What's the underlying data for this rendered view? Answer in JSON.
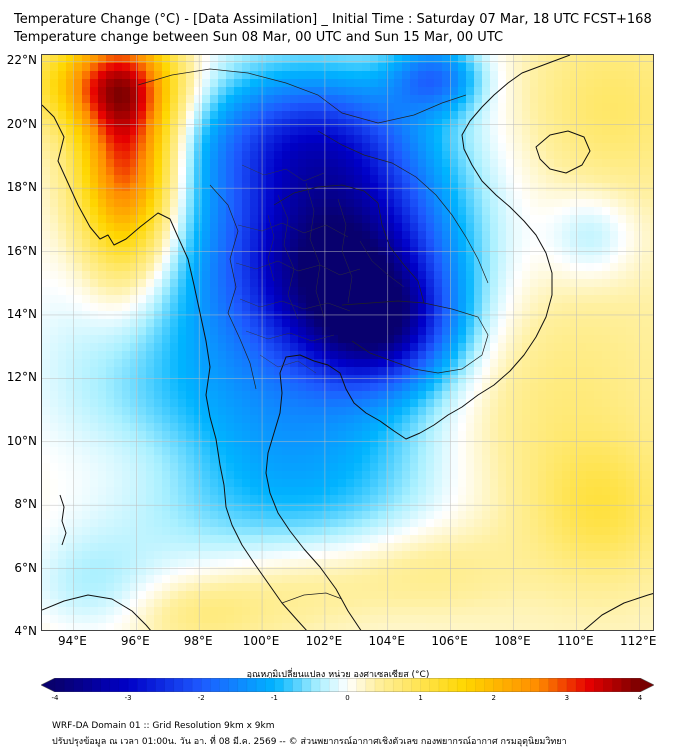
{
  "header": {
    "title_line1": "Temperature Change (°C) - [Data Assimilation] _ Initial Time : Saturday 07 Mar, 18 UTC FCST+168",
    "title_line2": "Temperature change between Sun 08 Mar, 00 UTC and Sun 15 Mar, 00 UTC"
  },
  "map": {
    "lon_range": [
      93,
      112.5
    ],
    "lat_range": [
      4,
      22.2
    ],
    "lat_ticks": [
      {
        "value": 22,
        "label": "22°N"
      },
      {
        "value": 20,
        "label": "20°N"
      },
      {
        "value": 18,
        "label": "18°N"
      },
      {
        "value": 16,
        "label": "16°N"
      },
      {
        "value": 14,
        "label": "14°N"
      },
      {
        "value": 12,
        "label": "12°N"
      },
      {
        "value": 10,
        "label": "10°N"
      },
      {
        "value": 8,
        "label": "8°N"
      },
      {
        "value": 6,
        "label": "6°N"
      },
      {
        "value": 4,
        "label": "4°N"
      }
    ],
    "lon_ticks": [
      {
        "value": 94,
        "label": "94°E"
      },
      {
        "value": 96,
        "label": "96°E"
      },
      {
        "value": 98,
        "label": "98°E"
      },
      {
        "value": 100,
        "label": "100°E"
      },
      {
        "value": 102,
        "label": "102°E"
      },
      {
        "value": 104,
        "label": "104°E"
      },
      {
        "value": 106,
        "label": "106°E"
      },
      {
        "value": 108,
        "label": "108°E"
      },
      {
        "value": 110,
        "label": "110°E"
      },
      {
        "value": 112,
        "label": "112°E"
      }
    ],
    "field_features": [
      {
        "name": "warm-core-myanmar",
        "lon": 95.7,
        "lat": 19.0,
        "value": 3.2,
        "spread_lon": 1.1,
        "spread_lat": 2.6
      },
      {
        "name": "warm-north-myanmar",
        "lon": 95.0,
        "lat": 21.3,
        "value": 1.8,
        "spread_lon": 1.6,
        "spread_lat": 1.0
      },
      {
        "name": "cold-core-thailand-laos",
        "lon": 102.5,
        "lat": 15.8,
        "value": -3.0,
        "spread_lon": 2.3,
        "spread_lat": 2.0
      },
      {
        "name": "cold-cambodia",
        "lon": 103.8,
        "lat": 13.6,
        "value": -2.2,
        "spread_lon": 1.6,
        "spread_lat": 1.3
      },
      {
        "name": "cold-north-laos",
        "lon": 101.5,
        "lat": 19.5,
        "value": -1.9,
        "spread_lon": 2.4,
        "spread_lat": 1.5
      },
      {
        "name": "cold-central-broad",
        "lon": 101.5,
        "lat": 14.8,
        "value": -1.4,
        "spread_lon": 4.0,
        "spread_lat": 5.0
      },
      {
        "name": "cold-south-china",
        "lon": 105.5,
        "lat": 21.5,
        "value": -1.6,
        "spread_lon": 1.0,
        "spread_lat": 0.8
      },
      {
        "name": "cool-gulf-thailand",
        "lon": 101.0,
        "lat": 8.8,
        "value": -0.7,
        "spread_lon": 3.5,
        "spread_lat": 2.5
      },
      {
        "name": "cool-andaman",
        "lon": 96.0,
        "lat": 12.0,
        "value": -0.4,
        "spread_lon": 3.0,
        "spread_lat": 3.0
      },
      {
        "name": "cool-south-china-sea",
        "lon": 110.5,
        "lat": 16.5,
        "value": -0.6,
        "spread_lon": 1.0,
        "spread_lat": 1.0
      },
      {
        "name": "cool-sw-corner",
        "lon": 94.5,
        "lat": 5.5,
        "value": -0.5,
        "spread_lon": 1.5,
        "spread_lat": 1.2
      },
      {
        "name": "warm-east-vietnam-sea",
        "lon": 108.5,
        "lat": 11.5,
        "value": 0.6,
        "spread_lon": 3.0,
        "spread_lat": 3.0
      },
      {
        "name": "warm-se-sea",
        "lon": 110.8,
        "lat": 7.8,
        "value": 0.7,
        "spread_lon": 1.5,
        "spread_lat": 1.5
      },
      {
        "name": "warm-malaysia",
        "lon": 101.0,
        "lat": 5.5,
        "value": 0.6,
        "spread_lon": 2.0,
        "spread_lat": 1.2
      },
      {
        "name": "warm-sumatra-north",
        "lon": 98.0,
        "lat": 4.6,
        "value": 0.5,
        "spread_lon": 1.5,
        "spread_lat": 0.8
      },
      {
        "name": "warm-south-sea",
        "lon": 105.0,
        "lat": 6.0,
        "value": 0.5,
        "spread_lon": 2.0,
        "spread_lat": 1.0
      },
      {
        "name": "warm-ne-corner",
        "lon": 111.0,
        "lat": 20.5,
        "value": 0.6,
        "spread_lon": 2.0,
        "spread_lat": 2.0
      },
      {
        "name": "warm-andaman-east",
        "lon": 96.5,
        "lat": 9.5,
        "value": 0.3,
        "spread_lon": 2.0,
        "spread_lat": 1.2
      }
    ]
  },
  "colorbar": {
    "title": "อุณหภูมิเปลี่ยนแปลง หน่วย องศาเซลเซียส (°C)",
    "min": -4,
    "max": 4,
    "ticks": [
      "-4",
      "-3",
      "-2",
      "-1",
      "0",
      "1",
      "2",
      "3",
      "4"
    ],
    "colors": [
      "#08006e",
      "#0000c8",
      "#1e5aff",
      "#00b4ff",
      "#aaf0ff",
      "#ffffff",
      "#fff0a0",
      "#ffd700",
      "#ff8c00",
      "#e60000",
      "#780000"
    ]
  },
  "footer": {
    "line1": "WRF-DA Domain 01 :: Grid Resolution 9km x 9km",
    "line2": "ปรับปรุงข้อมูล ณ เวลา 01:00น. วัน อา. ที่ 08 มี.ค. 2569 -- © ส่วนพยากรณ์อากาศเชิงตัวเลข กองพยากรณ์อากาศ กรมอุตุนิยมวิทยา"
  }
}
